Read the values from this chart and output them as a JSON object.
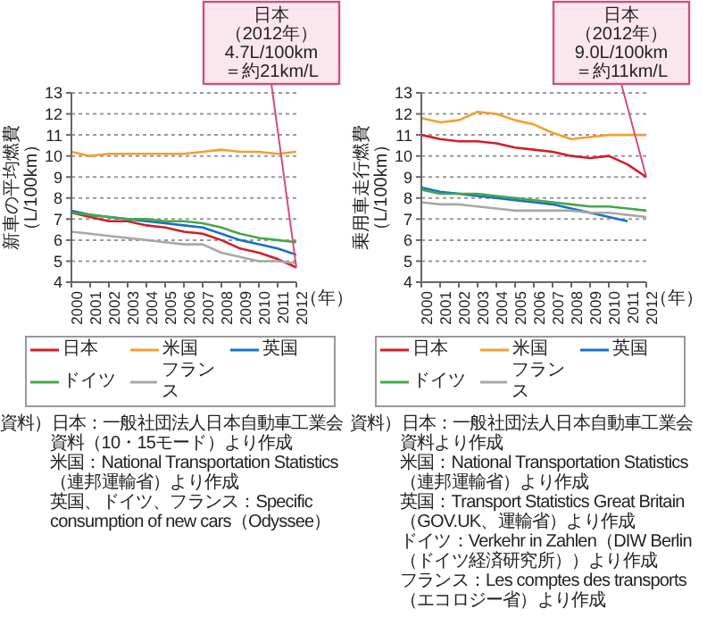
{
  "chart_data": [
    {
      "type": "line",
      "ylabel": "新車の平均燃費（L/100km）",
      "xlabel": "（年）",
      "x": [
        2000,
        2001,
        2002,
        2003,
        2004,
        2005,
        2006,
        2007,
        2008,
        2009,
        2010,
        2011,
        2012
      ],
      "xlim": [
        2000,
        2012
      ],
      "xticks": [
        2000,
        2001,
        2002,
        2003,
        2004,
        2005,
        2006,
        2007,
        2008,
        2009,
        2010,
        2011,
        2012
      ],
      "ylim": [
        4,
        13
      ],
      "yticks": [
        4,
        5,
        6,
        7,
        8,
        9,
        10,
        11,
        12,
        13
      ],
      "grid": "y",
      "legend": "bottom",
      "marker": "none",
      "line_style": "solid",
      "series": [
        {
          "name": "日本",
          "color": "#d21e2b",
          "values": [
            7.3,
            7.1,
            6.9,
            6.9,
            6.7,
            6.6,
            6.4,
            6.3,
            6.0,
            5.6,
            5.4,
            5.1,
            4.7
          ]
        },
        {
          "name": "米国",
          "color": "#f0a030",
          "values": [
            10.2,
            10.0,
            10.1,
            10.1,
            10.1,
            10.1,
            10.1,
            10.2,
            10.3,
            10.2,
            10.2,
            10.1,
            10.2
          ]
        },
        {
          "name": "英国",
          "color": "#1a70c4",
          "values": [
            7.4,
            7.2,
            7.1,
            7.0,
            6.9,
            6.8,
            6.7,
            6.6,
            6.3,
            6.0,
            5.8,
            5.6,
            5.3
          ]
        },
        {
          "name": "ドイツ",
          "color": "#45a84a",
          "values": [
            7.3,
            7.2,
            7.1,
            7.0,
            7.0,
            6.9,
            6.9,
            6.8,
            6.6,
            6.3,
            6.1,
            6.0,
            5.9
          ]
        },
        {
          "name": "フランス",
          "color": "#a8a8a8",
          "values": [
            6.4,
            6.3,
            6.2,
            6.1,
            6.0,
            5.9,
            5.8,
            5.8,
            5.4,
            5.2,
            5.0,
            5.0,
            4.9
          ]
        }
      ],
      "annotations": [
        {
          "text": "日本（2012年）4.7L/100km＝約21km/L",
          "x": 2012,
          "y": 4.7
        },
        "資料）日本：一般社団法人日本自動車工業会資料（10・15モード）より作成",
        "米国：National Transportation Statistics（連邦運輸省）より作成",
        "英国、ドイツ、フランス：Specific consumption of new cars（Odyssee）"
      ]
    },
    {
      "type": "line",
      "ylabel": "乗用車走行燃費（L/100km）",
      "xlabel": "（年）",
      "x": [
        2000,
        2001,
        2002,
        2003,
        2004,
        2005,
        2006,
        2007,
        2008,
        2009,
        2010,
        2011,
        2012
      ],
      "xlim": [
        2000,
        2012
      ],
      "xticks": [
        2000,
        2001,
        2002,
        2003,
        2004,
        2005,
        2006,
        2007,
        2008,
        2009,
        2010,
        2011,
        2012
      ],
      "ylim": [
        4,
        13
      ],
      "yticks": [
        4,
        5,
        6,
        7,
        8,
        9,
        10,
        11,
        12,
        13
      ],
      "grid": "y",
      "legend": "bottom",
      "marker": "none",
      "line_style": "solid",
      "series": [
        {
          "name": "日本",
          "color": "#d21e2b",
          "values": [
            11.0,
            10.8,
            10.7,
            10.7,
            10.6,
            10.4,
            10.3,
            10.2,
            10.0,
            9.9,
            10.0,
            9.6,
            9.0
          ]
        },
        {
          "name": "米国",
          "color": "#f0a030",
          "values": [
            11.8,
            11.6,
            11.7,
            12.1,
            12.0,
            11.7,
            11.5,
            11.1,
            10.8,
            10.9,
            11.0,
            11.0,
            11.0
          ]
        },
        {
          "name": "英国",
          "color": "#1a70c4",
          "values": [
            8.5,
            8.3,
            8.2,
            8.1,
            8.0,
            7.9,
            7.8,
            7.7,
            7.5,
            7.3,
            7.1,
            6.9,
            null
          ]
        },
        {
          "name": "ドイツ",
          "color": "#45a84a",
          "values": [
            8.4,
            8.2,
            8.2,
            8.2,
            8.1,
            8.0,
            7.9,
            7.8,
            7.7,
            7.6,
            7.6,
            7.5,
            7.4
          ]
        },
        {
          "name": "フランス",
          "color": "#a8a8a8",
          "values": [
            7.8,
            7.7,
            7.7,
            7.6,
            7.5,
            7.4,
            7.4,
            7.4,
            7.4,
            7.3,
            7.3,
            7.2,
            7.1
          ]
        }
      ],
      "annotations": [
        {
          "text": "日本（2012年）9.0L/100km＝約11km/L",
          "x": 2012,
          "y": 9.0
        },
        "資料）日本：一般社団法人日本自動車工業会資料より作成",
        "米国：National Transportation Statistics（連邦運輸省）より作成",
        "英国：Transport Statistics Great Britain（GOV.UK、運輸省）より作成",
        "ドイツ：Verkehr in Zahlen（DIW Berlin（ドイツ経済研究所））より作成",
        "フランス：Les comptes des transports（エコロジー省）より作成"
      ]
    }
  ]
}
